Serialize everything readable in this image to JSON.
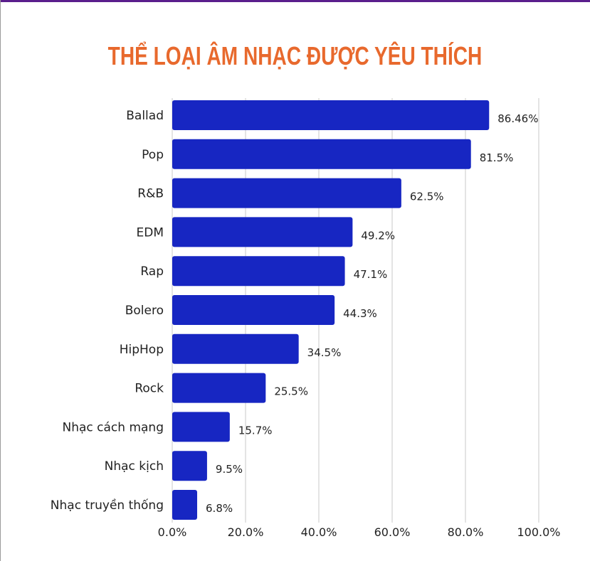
{
  "chart_data": {
    "type": "bar",
    "orientation": "horizontal",
    "title": "THỂ LOẠI ÂM NHẠC ĐƯỢC YÊU THÍCH",
    "categories": [
      "Ballad",
      "Pop",
      "R&B",
      "EDM",
      "Rap",
      "Bolero",
      "HipHop",
      "Rock",
      "Nhạc cách mạng",
      "Nhạc kịch",
      "Nhạc truyền thống"
    ],
    "values": [
      86.46,
      81.5,
      62.5,
      49.2,
      47.1,
      44.3,
      34.5,
      25.5,
      15.7,
      9.5,
      6.8
    ],
    "value_labels": [
      "86.46%",
      "81.5%",
      "62.5%",
      "49.2%",
      "47.1%",
      "44.3%",
      "34.5%",
      "25.5%",
      "15.7%",
      "9.5%",
      "6.8%"
    ],
    "xlim": [
      0,
      100
    ],
    "xticks": [
      0,
      20,
      40,
      60,
      80,
      100
    ],
    "xtick_labels": [
      "0.0%",
      "20.0%",
      "40.0%",
      "60.0%",
      "80.0%",
      "100.0%"
    ],
    "grid": true,
    "bar_color": "#1726c2",
    "title_color": "#e8692d"
  }
}
